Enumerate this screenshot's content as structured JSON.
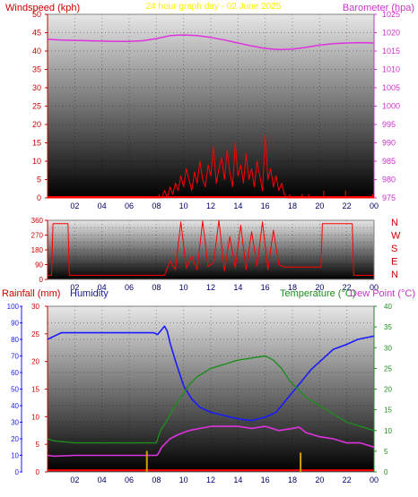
{
  "chart_data": [
    {
      "type": "line",
      "title": "24 hour graph day - 02 June 2025",
      "ylabel_left": "Windspeed (kph)",
      "ylabel_right": "Barometer (hpa)",
      "x_ticks": [
        "02",
        "04",
        "06",
        "08",
        "10",
        "12",
        "14",
        "16",
        "18",
        "20",
        "22",
        "00"
      ],
      "xlim": [
        0,
        24
      ],
      "ylim_left": [
        0,
        50
      ],
      "yticks_left": [
        0,
        5,
        10,
        15,
        20,
        25,
        30,
        35,
        40,
        45,
        50
      ],
      "ylim_right": [
        975,
        1025
      ],
      "yticks_right": [
        975,
        980,
        985,
        990,
        995,
        1000,
        1005,
        1010,
        1015,
        1020,
        1025
      ],
      "grid": true,
      "series": [
        {
          "name": "Barometer (hpa)",
          "axis": "right",
          "color": "#dd33dd",
          "x": [
            0,
            1,
            2,
            3,
            4,
            5,
            6,
            7,
            8,
            9,
            10,
            11,
            12,
            13,
            14,
            15,
            16,
            17,
            18,
            19,
            20,
            21,
            22,
            23,
            24
          ],
          "y": [
            1018.2,
            1018.0,
            1017.9,
            1017.8,
            1017.7,
            1017.6,
            1017.6,
            1017.8,
            1018.4,
            1019.2,
            1019.4,
            1019.2,
            1018.7,
            1018.0,
            1017.2,
            1016.4,
            1015.7,
            1015.4,
            1015.5,
            1016.0,
            1016.6,
            1017.0,
            1017.2,
            1017.3,
            1017.2
          ]
        },
        {
          "name": "Windspeed",
          "axis": "left",
          "color": "#ff0000",
          "x": [
            0,
            8.4,
            8.6,
            8.8,
            9.0,
            9.2,
            9.4,
            9.6,
            9.8,
            10.0,
            10.2,
            10.4,
            10.6,
            10.8,
            11.0,
            11.2,
            11.4,
            11.6,
            11.8,
            12.0,
            12.2,
            12.4,
            12.6,
            12.8,
            13.0,
            13.2,
            13.4,
            13.6,
            13.8,
            14.0,
            14.2,
            14.4,
            14.6,
            14.8,
            15.0,
            15.2,
            15.4,
            15.6,
            15.8,
            16.0,
            16.2,
            16.4,
            16.6,
            16.8,
            17.0,
            17.2,
            17.4,
            17.6,
            18,
            20,
            24
          ],
          "y": [
            0,
            0,
            2,
            0,
            3,
            1,
            4,
            2,
            6,
            3,
            8,
            5,
            2,
            7,
            4,
            10,
            5,
            3,
            9,
            6,
            14,
            4,
            8,
            11,
            5,
            13,
            7,
            3,
            15,
            6,
            9,
            4,
            12,
            5,
            8,
            3,
            10,
            6,
            2,
            17,
            5,
            8,
            3,
            6,
            2,
            4,
            1,
            0,
            0,
            0,
            0
          ]
        },
        {
          "name": "Wind gust markers",
          "axis": "left",
          "color": "#ff0000",
          "x": [
            8.2,
            17.8,
            18.7,
            19.2,
            20.3,
            21.9,
            23.9
          ],
          "y": [
            1,
            1,
            1,
            1,
            2,
            2,
            1
          ]
        }
      ]
    },
    {
      "type": "line",
      "ylabel_right_letters": [
        "N",
        "W",
        "S",
        "E",
        "N"
      ],
      "x_ticks": [
        "02",
        "04",
        "06",
        "08",
        "10",
        "12",
        "14",
        "16",
        "18",
        "20",
        "22",
        "00"
      ],
      "xlim": [
        0,
        24
      ],
      "ylim": [
        0,
        360
      ],
      "yticks": [
        0,
        45,
        90,
        135,
        180,
        225,
        270,
        315,
        360
      ],
      "ytick_labels": [
        "0",
        "45",
        "90",
        "135",
        "180",
        "225",
        "270",
        "315",
        "360"
      ],
      "grid": true,
      "series": [
        {
          "name": "Wind direction",
          "color": "#ff0000",
          "x": [
            0,
            0.3,
            0.4,
            1.5,
            1.6,
            8.6,
            9.0,
            9.4,
            9.8,
            10.2,
            10.6,
            11.0,
            11.4,
            11.8,
            12.2,
            12.6,
            13.0,
            13.4,
            13.8,
            14.2,
            14.6,
            15.0,
            15.4,
            15.8,
            16.2,
            16.6,
            17.0,
            17.4,
            17.8,
            20.1,
            20.2,
            22.4,
            22.5,
            24
          ],
          "y": [
            25,
            25,
            340,
            340,
            25,
            25,
            110,
            60,
            350,
            70,
            140,
            60,
            355,
            80,
            100,
            360,
            50,
            260,
            70,
            330,
            60,
            290,
            80,
            350,
            60,
            300,
            90,
            75,
            75,
            75,
            340,
            340,
            25,
            25
          ]
        }
      ]
    },
    {
      "type": "line",
      "ylabel_left_1": "Rainfall (mm)",
      "ylabel_left_2": "Humidity",
      "ylabel_right_1": "Temperature (°C)",
      "ylabel_right_2": "Dew Point (°C)",
      "x_ticks": [
        "02",
        "04",
        "06",
        "08",
        "10",
        "12",
        "14",
        "16",
        "18",
        "20",
        "22",
        "00"
      ],
      "xlim": [
        0,
        24
      ],
      "humidity_axis": {
        "ylim": [
          0,
          100
        ],
        "yticks": [
          0,
          10,
          20,
          30,
          40,
          50,
          60,
          70,
          80,
          90,
          100
        ]
      },
      "rain_axis": {
        "ylim": [
          0,
          30
        ],
        "yticks": [
          0,
          5,
          10,
          15,
          20,
          25,
          30
        ]
      },
      "temp_axis": {
        "ylim": [
          0,
          40
        ],
        "yticks": [
          0,
          5,
          10,
          15,
          20,
          25,
          30,
          35,
          40
        ]
      },
      "grid": true,
      "series": [
        {
          "name": "Humidity",
          "axis": "humidity",
          "color": "#1a1aff",
          "x": [
            0,
            0.5,
            1,
            2,
            3,
            4,
            5,
            6,
            7,
            7.8,
            8.1,
            8.4,
            8.6,
            8.8,
            9.0,
            9.4,
            10,
            10.6,
            11.2,
            12,
            13,
            14,
            15,
            16,
            16.8,
            17.4,
            18,
            18.6,
            19.4,
            20.2,
            21,
            22,
            22.8,
            23.4,
            24
          ],
          "y": [
            80,
            82,
            84,
            84,
            84,
            84,
            84,
            84,
            84,
            84,
            83,
            86,
            88,
            85,
            78,
            67,
            52,
            44,
            39,
            36,
            34,
            32,
            31,
            33,
            36,
            42,
            48,
            54,
            62,
            68,
            74,
            77,
            80,
            81,
            82
          ]
        },
        {
          "name": "Temperature (°C)",
          "axis": "temp",
          "color": "#1e8c1e",
          "x": [
            0,
            0.5,
            2,
            4,
            6,
            8,
            8.1,
            8.3,
            8.7,
            9.2,
            9.8,
            10.4,
            11,
            12,
            13,
            14,
            15,
            16,
            16.6,
            17.2,
            17.8,
            18.4,
            19,
            20,
            21,
            22,
            23,
            24
          ],
          "y": [
            8,
            7.5,
            7,
            7,
            7,
            7,
            8,
            10,
            12,
            15,
            18,
            21,
            23,
            25,
            26,
            27,
            27.5,
            28,
            27,
            25,
            22,
            20,
            18,
            16,
            14,
            12,
            11,
            10
          ]
        },
        {
          "name": "Dew Point (°C)",
          "axis": "temp",
          "color": "#dd33dd",
          "x": [
            0,
            0.5,
            2,
            4,
            6,
            8,
            8.1,
            8.4,
            9,
            9.6,
            10.4,
            11.2,
            12,
            13,
            14,
            15,
            16,
            17,
            18,
            18.5,
            19,
            20,
            21,
            22,
            23,
            24
          ],
          "y": [
            4,
            3.8,
            4,
            4,
            4,
            4,
            4.2,
            6,
            8,
            9,
            10,
            10.5,
            11,
            11,
            11,
            10.5,
            11,
            10,
            10.5,
            10.8,
            9.5,
            8.5,
            8,
            7,
            7,
            6
          ]
        },
        {
          "name": "Rainfall (mm)",
          "axis": "rain",
          "color": "#ff0000",
          "x": [
            0,
            24
          ],
          "y": [
            0.3,
            0.3
          ]
        }
      ],
      "rain_markers": {
        "color": "#d4a000",
        "x": [
          7.3,
          18.6
        ],
        "y": [
          3.8,
          3.5
        ]
      }
    }
  ]
}
